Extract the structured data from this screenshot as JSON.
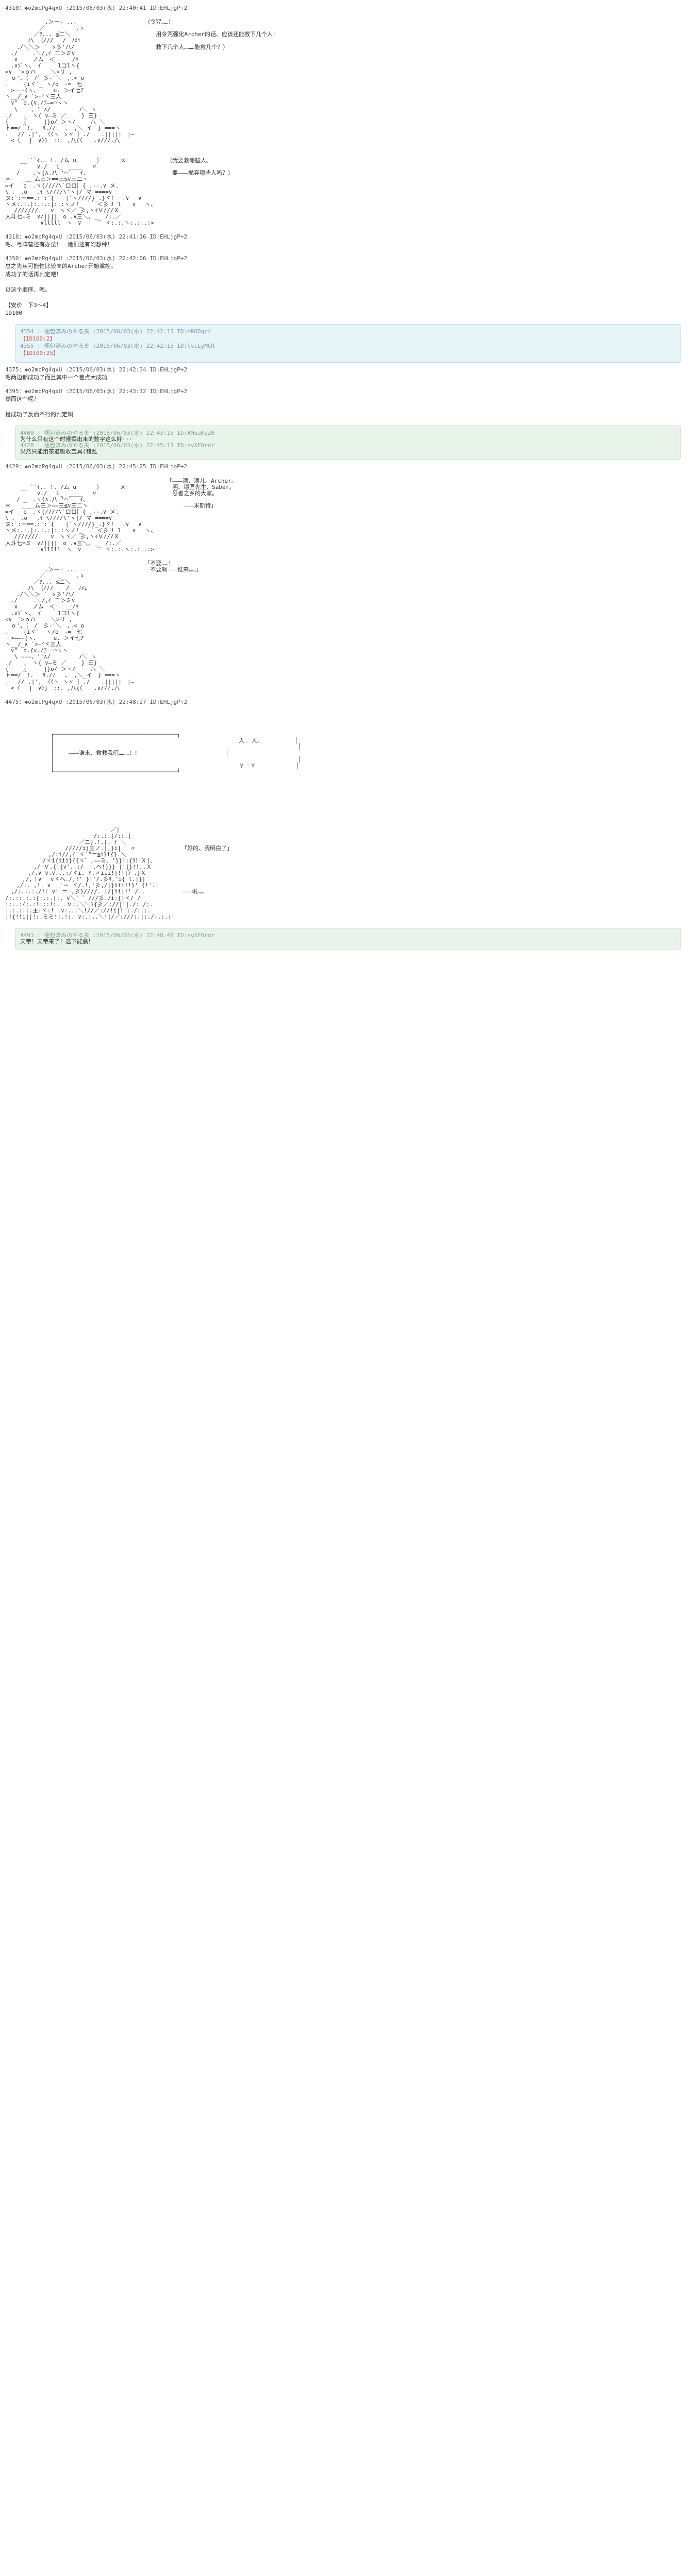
{
  "posts": {
    "p4310": {
      "header": "4310：◆o2mcPg4qxU :2015/06/03(水) 22:40:41 ID:EHLjgP+2",
      "dialogue_title": "（令咒……！",
      "dialogue_l1": "　　用令咒强化Archer的话、应该还能救下几个人！",
      "dialogue_l2": "　　救下几个人………能救几个？）"
    },
    "p4310b": {
      "dialogue_l1": "（我要救哪些人。",
      "dialogue_l2": "　要———抛弃哪些人吗？）"
    },
    "p4318": {
      "header": "4318：◆o2mcPg4qxU :2015/06/03(水) 22:41:16 ID:EHLjgP+2",
      "text": "嗯、弓阵营还有办法！　她们还有幻想种！"
    },
    "p4350": {
      "header": "4350：◆o2mcPg4qxU :2015/06/03(水) 22:42:06 ID:EHLjgP+2",
      "l1": "总之先从可能性比较高的Archer开始掌控。",
      "l2": "成功了的话再判定吧！",
      "l3": "以这个顺序、嗯。",
      "l4": "【安价　下3～4】",
      "l5": "1D100"
    },
    "reply_blue": {
      "r1_header": "4354 : 梱包済みのやる夫 :2015/06/03(水) 22:42:15 ID:mR6Dgc4",
      "r1_roll": "【1D100:2】",
      "r2_header": "4355 : 梱包済みのやる夫 :2015/06/03(水) 22:42:15 ID:lvcLyMCR",
      "r2_roll": "【1D100:25】"
    },
    "p4375": {
      "header": "4375：◆o2mcPg4qxU :2015/06/03(水) 22:42:34 ID:EHLjgP+2",
      "text": "嗯两边都成功了而且其中一个差点大成功"
    },
    "p4395": {
      "header": "4395：◆o2mcPg4qxU :2015/06/03(水) 22:43:12 ID:EHLjgP+2",
      "l1": "然而这个呢？",
      "l2": "是成功了反而不行的判定啊"
    },
    "reply_green1": {
      "r1_header": "4400 : 梱包済みのやる夫 :2015/06/03(水) 22:43:15 ID:AMuaKpZ0",
      "r1_text": "为什么只有这个时候掷出来的数字这么好···",
      "r2_header": "4428 : 梱包済みのやる夫 :2015/06/03(水) 22:45:13 ID:syXF0rdr",
      "r2_text": "果然只能用茶道吸收宝具(错乱"
    },
    "p4429": {
      "header": "4429：◆o2mcPg4qxU :2015/06/03(水) 22:45:25 ID:EHLjgP+2",
      "dialogue": "「———漂、漂儿。Archer。\n　明、锻匠先生、Saber。\n　忍者之乡的大家。\n\n　　　———米斯特」"
    },
    "p4429b": {
      "dialogue": "「不要……！\n　不要啊———谁来……」"
    },
    "p4475": {
      "header": "4475：◆o2mcPg4qxU :2015/06/03(水) 22:48:27 ID:EHLjgP+2",
      "dialogue": "———谁来、救救我们………！！"
    },
    "p4475b": {
      "dialogue": "「好的、我明白了」",
      "suffix": "———帆……"
    },
    "reply_green2": {
      "header": "4493 : 梱包済みのやる夫 :2015/06/03(水) 22:48:48 ID:syXF0rdr",
      "text": "天帝！天帝来了！这下能赢！"
    }
  }
}
